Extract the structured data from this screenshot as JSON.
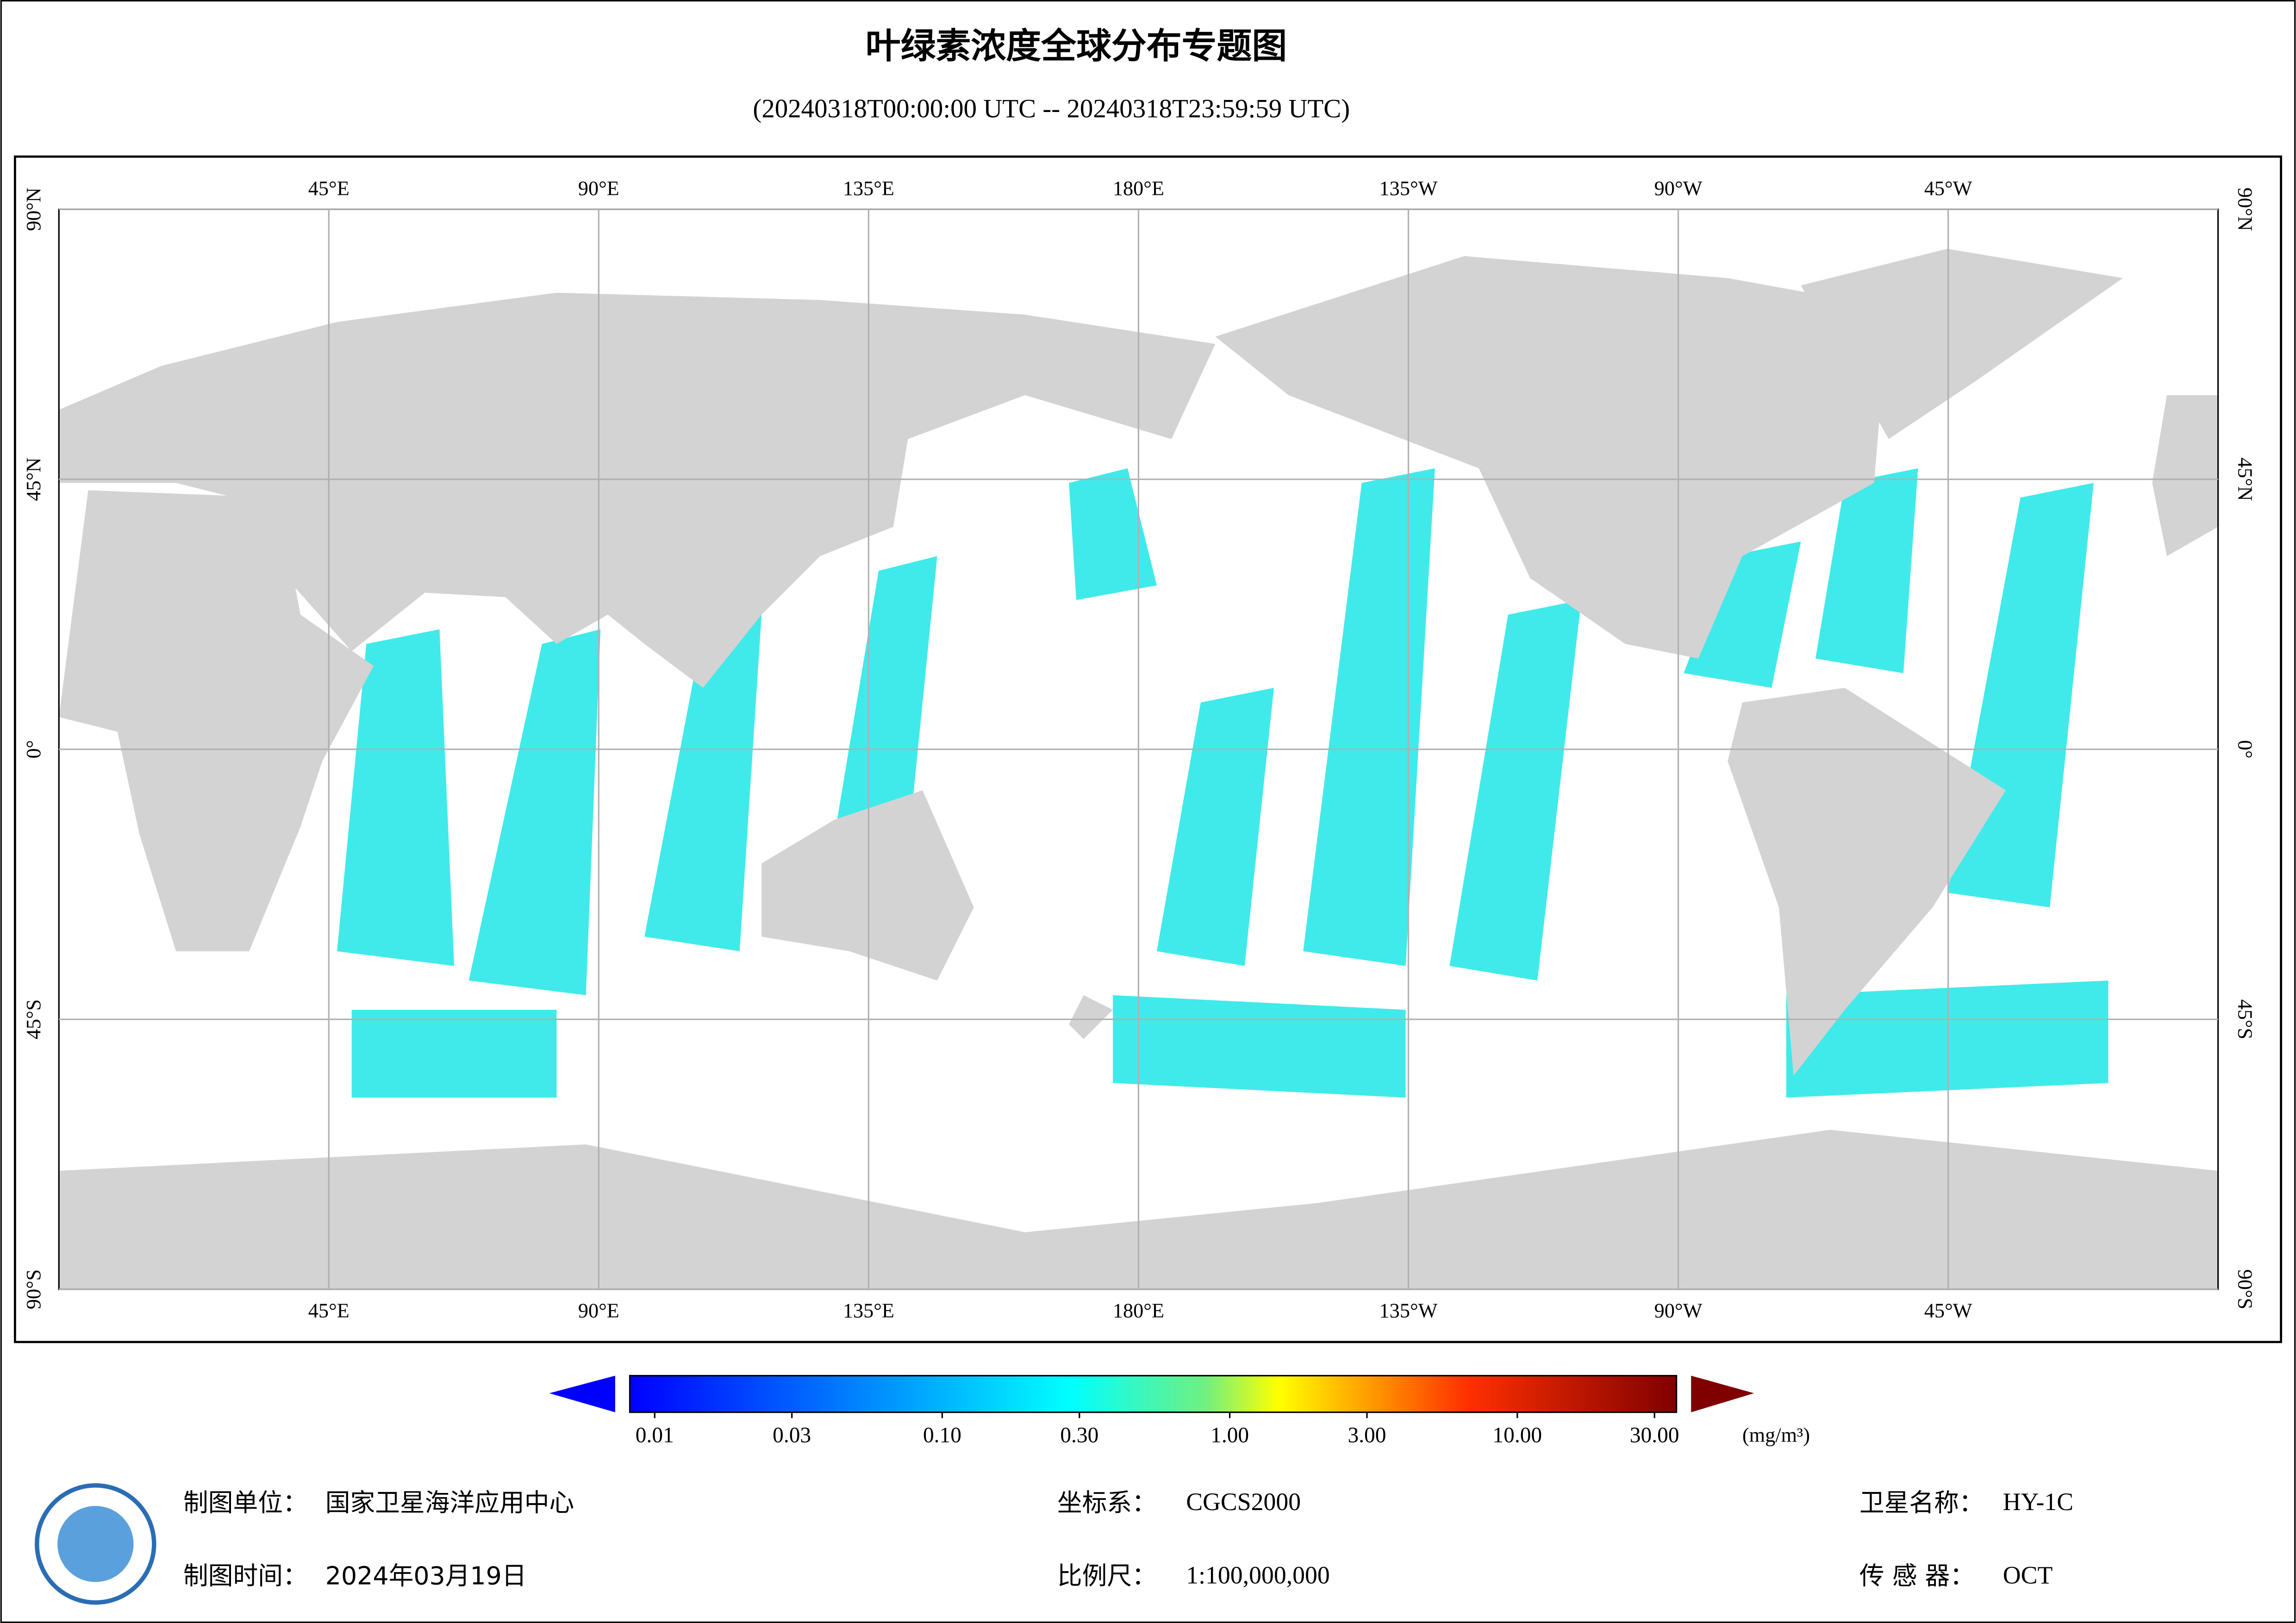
{
  "header": {
    "title": "叶绿素浓度全球分布专题图",
    "subtitle": "(20240318T00:00:00 UTC -- 20240318T23:59:59 UTC)"
  },
  "map": {
    "xlim": [
      0,
      360
    ],
    "ylim": [
      -90,
      90
    ],
    "lon_ticks": [
      {
        "value": 45,
        "label": "45°E"
      },
      {
        "value": 90,
        "label": "90°E"
      },
      {
        "value": 135,
        "label": "135°E"
      },
      {
        "value": 180,
        "label": "180°E"
      },
      {
        "value": -135,
        "label": "135°W"
      },
      {
        "value": -90,
        "label": "90°W"
      },
      {
        "value": -45,
        "label": "45°W"
      }
    ],
    "lat_ticks": [
      {
        "value": 90,
        "label": "90°N"
      },
      {
        "value": 45,
        "label": "45°N"
      },
      {
        "value": 0,
        "label": "0°"
      },
      {
        "value": -45,
        "label": "45°S"
      },
      {
        "value": -90,
        "label": "90°S"
      }
    ]
  },
  "colorbar": {
    "range": [
      0.01,
      30
    ],
    "log": true,
    "unit": "(mg/m³)",
    "ticks": [
      0.01,
      0.03,
      {
        "value": 0.1,
        "label": "0.10"
      },
      {
        "value": 0.3,
        "label": "0.30"
      },
      {
        "value": 1,
        "label": "1.00"
      },
      {
        "value": 3,
        "label": "3.00"
      },
      {
        "value": 10,
        "label": "10.00"
      },
      {
        "value": 30,
        "label": "30.00"
      }
    ]
  },
  "footer": {
    "unit": {
      "key": "制图单位：",
      "value": "国家卫星海洋应用中心"
    },
    "date": {
      "key": "制图时间：",
      "value": "2024年03月19日"
    },
    "crs": {
      "key": "坐标系：",
      "value": "CGCS2000"
    },
    "scale": {
      "key": "比例尺：",
      "value": "1:100,000,000"
    },
    "satellite": {
      "key": "卫星名称：",
      "value": "HY-1C"
    },
    "sensor": {
      "key": "传 感 器：",
      "value": "OCT"
    }
  }
}
